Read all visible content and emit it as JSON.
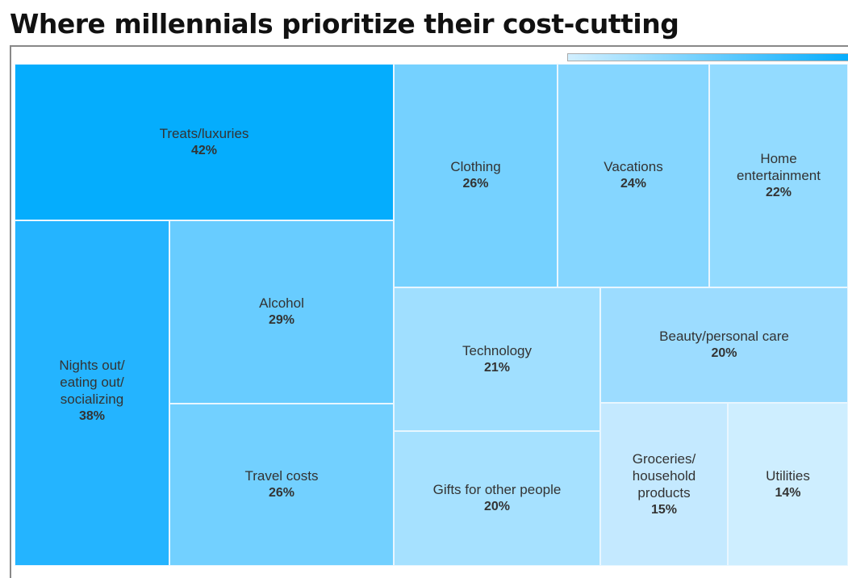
{
  "chart_data": {
    "type": "treemap",
    "title": "Where millennials prioritize their cost-cutting",
    "legend": "top-right",
    "color_scale": [
      "#d2efff",
      "#05adfd"
    ],
    "items": [
      {
        "label": "Treats/luxuries",
        "value": 42,
        "display": "42%",
        "color": "#05adfd"
      },
      {
        "label": "Nights out/\neating out/\nsocializing",
        "value": 38,
        "display": "38%",
        "color": "#24b4ff"
      },
      {
        "label": "Alcohol",
        "value": 29,
        "display": "29%",
        "color": "#68ccff"
      },
      {
        "label": "Travel costs",
        "value": 26,
        "display": "26%",
        "color": "#72d0ff"
      },
      {
        "label": "Clothing",
        "value": 26,
        "display": "26%",
        "color": "#75d1ff"
      },
      {
        "label": "Vacations",
        "value": 24,
        "display": "24%",
        "color": "#85d6ff"
      },
      {
        "label": "Home\nentertainment",
        "value": 22,
        "display": "22%",
        "color": "#93dbff"
      },
      {
        "label": "Technology",
        "value": 21,
        "display": "21%",
        "color": "#a0dfff"
      },
      {
        "label": "Gifts for other people",
        "value": 20,
        "display": "20%",
        "color": "#a6e1ff"
      },
      {
        "label": "Beauty/personal care",
        "value": 20,
        "display": "20%",
        "color": "#9cdcff"
      },
      {
        "label": "Groceries/\nhousehold\nproducts",
        "value": 15,
        "display": "15%",
        "color": "#c4e9ff"
      },
      {
        "label": "Utilities",
        "value": 14,
        "display": "14%",
        "color": "#ceeeff"
      }
    ]
  }
}
